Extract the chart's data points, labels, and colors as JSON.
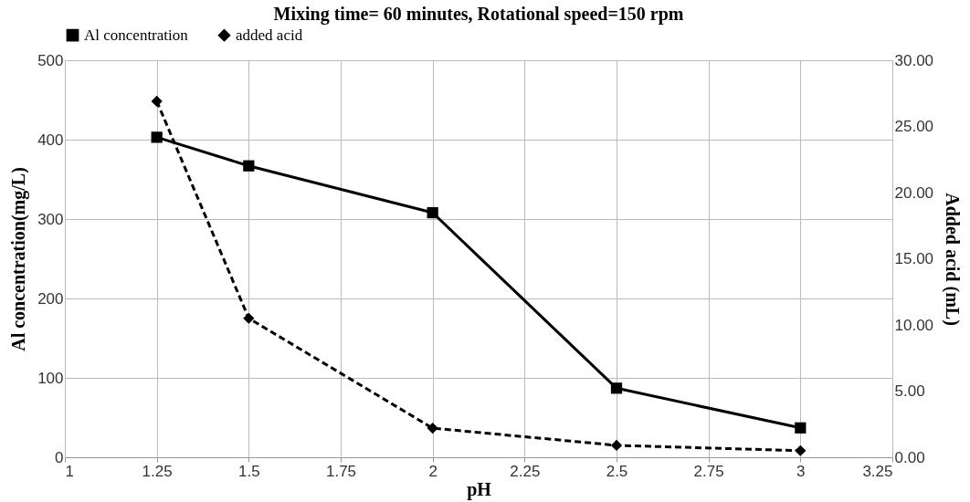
{
  "chart_data": {
    "type": "line",
    "title": "Mixing time= 60 minutes, Rotational speed=150 rpm",
    "xlabel": "pH",
    "ylabel": "Al concentration(mg/L)",
    "y2label": "Added acid (mL)",
    "x": [
      1.25,
      1.5,
      2,
      2.5,
      3
    ],
    "series": [
      {
        "name": "Al concentration",
        "color": "#000000",
        "marker": "square",
        "line_style": "solid",
        "values": [
          403,
          367,
          308,
          87,
          37
        ]
      },
      {
        "name": "added acid",
        "color": "#000000",
        "marker": "diamond",
        "line_style": "dashed",
        "axis": "y2",
        "values": [
          26.9,
          10.5,
          2.2,
          0.9,
          0.5
        ]
      }
    ],
    "xlim": [
      1,
      3.25
    ],
    "xticks": [
      1,
      1.25,
      1.5,
      1.75,
      2,
      2.25,
      2.5,
      2.75,
      3,
      3.25
    ],
    "ylim": [
      0,
      500
    ],
    "yticks": [
      0,
      100,
      200,
      300,
      400,
      500
    ],
    "y2lim": [
      0,
      30
    ],
    "y2ticks": [
      {
        "value": 0,
        "label": "0.00"
      },
      {
        "value": 5,
        "label": "5.00"
      },
      {
        "value": 10,
        "label": "10.00"
      },
      {
        "value": 15,
        "label": "15.00"
      },
      {
        "value": 20,
        "label": "20.00"
      },
      {
        "value": 25,
        "label": "25.00"
      },
      {
        "value": 30,
        "label": "30.00"
      }
    ],
    "grid": true,
    "legend": "top"
  }
}
